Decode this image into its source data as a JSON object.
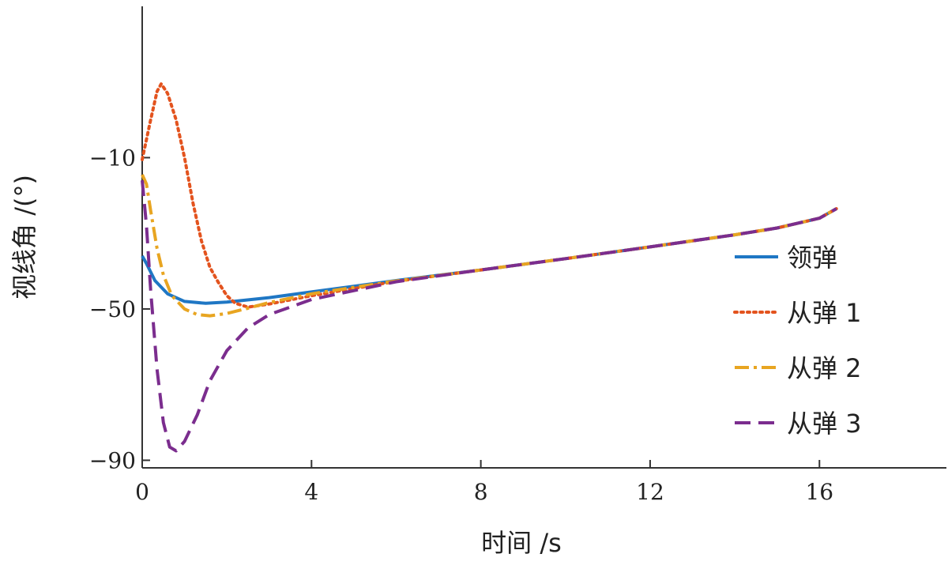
{
  "chart_data": {
    "type": "line",
    "xlabel": "时间 /s",
    "ylabel": "视线角 /(°)",
    "xlim": [
      0,
      19
    ],
    "ylim": [
      -92,
      30
    ],
    "xticks": [
      0,
      4,
      8,
      12,
      16
    ],
    "yticks": [
      -90,
      -50,
      -10
    ],
    "xtick_labels": [
      "0",
      "4",
      "8",
      "12",
      "16"
    ],
    "ytick_labels": [
      "−90",
      "−50",
      "−10"
    ],
    "grid": false,
    "legend_position": "right",
    "series": [
      {
        "name": "领弹",
        "color": "#1f77c4",
        "dash": "solid",
        "points": [
          [
            0,
            -36
          ],
          [
            0.1,
            -38
          ],
          [
            0.3,
            -42.5
          ],
          [
            0.6,
            -46
          ],
          [
            1,
            -48
          ],
          [
            1.5,
            -48.5
          ],
          [
            2,
            -48.2
          ],
          [
            3,
            -47
          ],
          [
            4,
            -45.5
          ],
          [
            5,
            -44
          ],
          [
            6,
            -42.5
          ],
          [
            8,
            -39.7
          ],
          [
            10,
            -36.7
          ],
          [
            12,
            -33.6
          ],
          [
            14,
            -30.4
          ],
          [
            15,
            -28.6
          ],
          [
            16,
            -26
          ],
          [
            16.4,
            -23.5
          ]
        ]
      },
      {
        "name": "从弹 1",
        "color": "#e3531e",
        "dash": "dotted",
        "points": [
          [
            0,
            -10.5
          ],
          [
            0.2,
            0
          ],
          [
            0.35,
            7.5
          ],
          [
            0.45,
            9.5
          ],
          [
            0.6,
            7
          ],
          [
            0.8,
            0
          ],
          [
            1,
            -10
          ],
          [
            1.2,
            -22
          ],
          [
            1.4,
            -32
          ],
          [
            1.6,
            -39
          ],
          [
            1.8,
            -43
          ],
          [
            2,
            -46.5
          ],
          [
            2.2,
            -48.5
          ],
          [
            2.5,
            -49.5
          ],
          [
            3,
            -48.7
          ],
          [
            4,
            -46.5
          ],
          [
            6,
            -42.7
          ],
          [
            8,
            -39.7
          ],
          [
            10,
            -36.7
          ],
          [
            12,
            -33.6
          ],
          [
            14,
            -30.4
          ],
          [
            15,
            -28.6
          ],
          [
            16,
            -26
          ],
          [
            16.4,
            -23.5
          ]
        ]
      },
      {
        "name": "从弹 2",
        "color": "#e8a521",
        "dash": "dashdot",
        "points": [
          [
            0,
            -14.5
          ],
          [
            0.1,
            -17
          ],
          [
            0.2,
            -24
          ],
          [
            0.35,
            -34
          ],
          [
            0.5,
            -41
          ],
          [
            0.7,
            -46.5
          ],
          [
            1,
            -50
          ],
          [
            1.3,
            -51.5
          ],
          [
            1.6,
            -51.8
          ],
          [
            2,
            -51.2
          ],
          [
            2.5,
            -49.8
          ],
          [
            3,
            -48.3
          ],
          [
            4,
            -46
          ],
          [
            6,
            -42.6
          ],
          [
            8,
            -39.7
          ],
          [
            10,
            -36.7
          ],
          [
            12,
            -33.6
          ],
          [
            14,
            -30.4
          ],
          [
            15,
            -28.6
          ],
          [
            16,
            -26
          ],
          [
            16.4,
            -23.5
          ]
        ]
      },
      {
        "name": "从弹 3",
        "color": "#7b2d8e",
        "dash": "dashed",
        "points": [
          [
            0,
            -16
          ],
          [
            0.1,
            -28
          ],
          [
            0.2,
            -45
          ],
          [
            0.35,
            -66
          ],
          [
            0.5,
            -80
          ],
          [
            0.65,
            -86.5
          ],
          [
            0.8,
            -87.5
          ],
          [
            1,
            -85
          ],
          [
            1.3,
            -78
          ],
          [
            1.6,
            -69
          ],
          [
            2,
            -61
          ],
          [
            2.5,
            -55
          ],
          [
            3,
            -51.5
          ],
          [
            4,
            -47.5
          ],
          [
            6,
            -42.8
          ],
          [
            8,
            -39.7
          ],
          [
            10,
            -36.7
          ],
          [
            12,
            -33.6
          ],
          [
            14,
            -30.4
          ],
          [
            15,
            -28.6
          ],
          [
            16,
            -26
          ],
          [
            16.4,
            -23.5
          ]
        ]
      }
    ]
  }
}
